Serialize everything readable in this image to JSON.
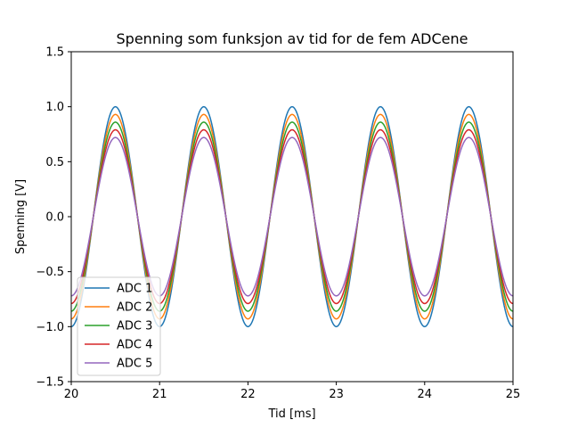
{
  "chart_data": {
    "type": "line",
    "title": "Spenning som funksjon av tid for de fem ADCene",
    "xlabel": "Tid [ms]",
    "ylabel": "Spenning [V]",
    "xlim": [
      20,
      25
    ],
    "ylim": [
      -1.5,
      1.5
    ],
    "xticks": [
      "20",
      "21",
      "22",
      "23",
      "24",
      "25"
    ],
    "yticks": [
      "−1.5",
      "−1.0",
      "−0.5",
      "0.0",
      "0.5",
      "1.0",
      "1.5"
    ],
    "x": [
      20.0,
      20.125,
      20.25,
      20.375,
      20.5,
      20.625,
      20.75,
      20.875,
      21.0,
      21.125,
      21.25,
      21.375,
      21.5,
      21.625,
      21.75,
      21.875,
      22.0,
      22.125,
      22.25,
      22.375,
      22.5,
      22.625,
      22.75,
      22.875,
      23.0,
      23.125,
      23.25,
      23.375,
      23.5,
      23.625,
      23.75,
      23.875,
      24.0,
      24.125,
      24.25,
      24.375,
      24.5,
      24.625,
      24.75,
      24.875,
      25.0
    ],
    "series": [
      {
        "name": "ADC 1",
        "color": "#1f77b4",
        "values": [
          -1.0,
          -0.71,
          0.0,
          0.71,
          1.0,
          0.71,
          0.0,
          -0.71,
          -1.0,
          -0.71,
          0.0,
          0.71,
          1.0,
          0.71,
          0.0,
          -0.71,
          -1.0,
          -0.71,
          0.0,
          0.71,
          1.0,
          0.71,
          0.0,
          -0.71,
          -1.0,
          -0.71,
          0.0,
          0.71,
          1.0,
          0.71,
          0.0,
          -0.71,
          -1.0,
          -0.71,
          0.0,
          0.71,
          1.0,
          0.71,
          0.0,
          -0.71,
          -1.0
        ]
      },
      {
        "name": "ADC 2",
        "color": "#ff7f0e",
        "values": [
          -0.93,
          -0.66,
          0.0,
          0.66,
          0.93,
          0.66,
          0.0,
          -0.66,
          -0.93,
          -0.66,
          0.0,
          0.66,
          0.93,
          0.66,
          0.0,
          -0.66,
          -0.93,
          -0.66,
          0.0,
          0.66,
          0.93,
          0.66,
          0.0,
          -0.66,
          -0.93,
          -0.66,
          0.0,
          0.66,
          0.93,
          0.66,
          0.0,
          -0.66,
          -0.93,
          -0.66,
          0.0,
          0.66,
          0.93,
          0.66,
          0.0,
          -0.66,
          -0.93
        ]
      },
      {
        "name": "ADC 3",
        "color": "#2ca02c",
        "values": [
          -0.86,
          -0.61,
          0.0,
          0.61,
          0.86,
          0.61,
          0.0,
          -0.61,
          -0.86,
          -0.61,
          0.0,
          0.61,
          0.86,
          0.61,
          0.0,
          -0.61,
          -0.86,
          -0.61,
          0.0,
          0.61,
          0.86,
          0.61,
          0.0,
          -0.61,
          -0.86,
          -0.61,
          0.0,
          0.61,
          0.86,
          0.61,
          0.0,
          -0.61,
          -0.86,
          -0.61,
          0.0,
          0.61,
          0.86,
          0.61,
          0.0,
          -0.61,
          -0.86
        ]
      },
      {
        "name": "ADC 4",
        "color": "#d62728",
        "values": [
          -0.79,
          -0.56,
          0.0,
          0.56,
          0.79,
          0.56,
          0.0,
          -0.56,
          -0.79,
          -0.56,
          0.0,
          0.56,
          0.79,
          0.56,
          0.0,
          -0.56,
          -0.79,
          -0.56,
          0.0,
          0.56,
          0.79,
          0.56,
          0.0,
          -0.56,
          -0.79,
          -0.56,
          0.0,
          0.56,
          0.79,
          0.56,
          0.0,
          -0.56,
          -0.79,
          -0.56,
          0.0,
          0.56,
          0.79,
          0.56,
          0.0,
          -0.56,
          -0.79
        ]
      },
      {
        "name": "ADC 5",
        "color": "#9467bd",
        "values": [
          -0.72,
          -0.51,
          0.0,
          0.51,
          0.72,
          0.51,
          0.0,
          -0.51,
          -0.72,
          -0.51,
          0.0,
          0.51,
          0.72,
          0.51,
          0.0,
          -0.51,
          -0.72,
          -0.51,
          0.0,
          0.51,
          0.72,
          0.51,
          0.0,
          -0.51,
          -0.72,
          -0.51,
          0.0,
          0.51,
          0.72,
          0.51,
          0.0,
          -0.51,
          -0.72,
          -0.51,
          0.0,
          0.51,
          0.72,
          0.51,
          0.0,
          -0.51,
          -0.72
        ]
      }
    ],
    "legend_position": "lower-left",
    "grid": false
  }
}
